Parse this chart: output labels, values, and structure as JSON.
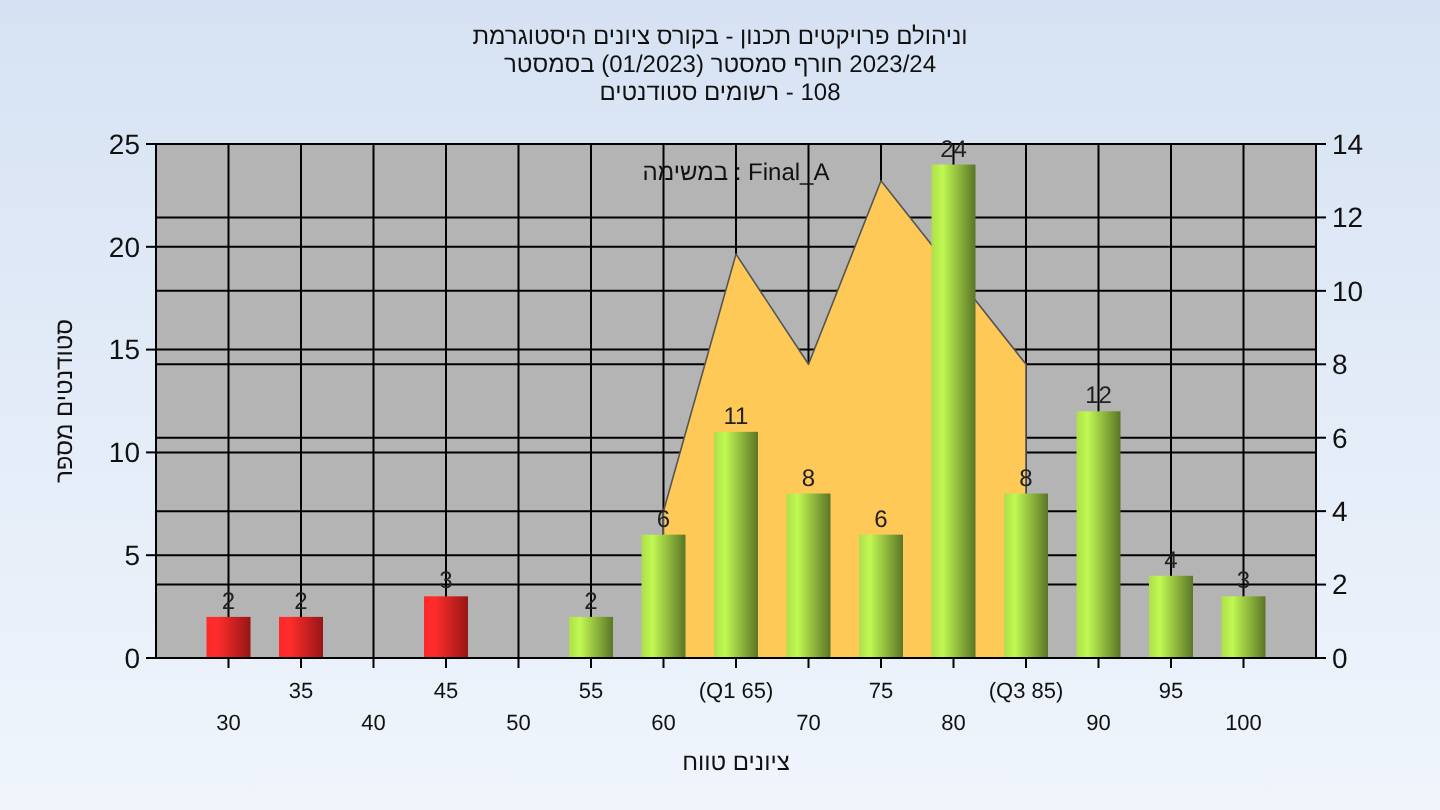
{
  "chart_data": {
    "type": "bar",
    "title": "וניהולם פרויקטים תכנון - בקורס ציונים היסטוגרמת",
    "subtitle": [
      "2023/24 חורף סמסטר (01/2023) בסמסטר",
      "108 - רשומים סטודנטים"
    ],
    "xlabel": "ציונים טווח",
    "ylabel": "סטודנטים מספר",
    "annotations": [
      "Final_A : במשימה"
    ],
    "categories": [
      "30",
      "35",
      "40",
      "45",
      "50",
      "55",
      "60",
      "(Q1 65)",
      "70",
      "75",
      "80",
      "(Q3 85)",
      "90",
      "95",
      "100"
    ],
    "series": [
      {
        "type": "area",
        "axis": "y2",
        "color": "#ffc957",
        "values": [
          null,
          null,
          null,
          null,
          null,
          null,
          4,
          11,
          8,
          13,
          null,
          8,
          null,
          null,
          null
        ]
      },
      {
        "values": [
          2,
          2,
          null,
          3,
          null,
          2,
          6,
          11,
          8,
          6,
          24,
          8,
          12,
          4,
          3
        ],
        "value_labels": [
          "2",
          "2",
          null,
          "3",
          null,
          "2",
          "6",
          "11",
          "8",
          "6",
          "24",
          "8",
          "12",
          "4",
          "3"
        ],
        "colors": [
          "#e82020",
          "#e82020",
          null,
          "#e82020",
          null,
          "#8cb43c",
          "#8cb43c",
          "#8cb43c",
          "#8cb43c",
          "#8cb43c",
          "#8cb43c",
          "#8cb43c",
          "#8cb43c",
          "#8cb43c",
          "#8cb43c"
        ]
      }
    ],
    "ylim": [
      0,
      25
    ],
    "yticks": [
      0,
      5,
      10,
      15,
      20,
      25
    ],
    "y2lim": [
      0,
      14
    ],
    "y2ticks": [
      0,
      2,
      4,
      6,
      8,
      10,
      12,
      14
    ],
    "grid": true
  }
}
